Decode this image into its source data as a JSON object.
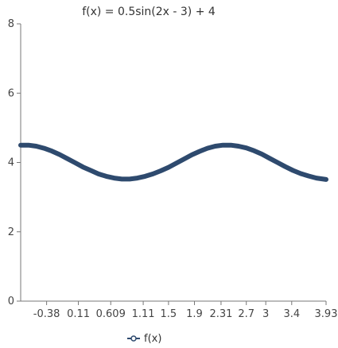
{
  "chart_data": {
    "type": "line",
    "title": "f(x) = 0.5sin(2x - 3) + 4",
    "xlabel": "",
    "ylabel": "",
    "xlim": [
      -0.78,
      3.93
    ],
    "ylim": [
      0,
      8
    ],
    "x_ticks": [
      -0.38,
      0.11,
      0.609,
      1.11,
      1.5,
      1.9,
      2.31,
      2.7,
      3,
      3.4,
      3.93
    ],
    "x_tick_labels": [
      "-0.38",
      "0.11",
      "0.609",
      "1.11",
      "1.5",
      "1.9",
      "2.31",
      "2.7",
      "3",
      "3.4",
      "3.93"
    ],
    "y_ticks": [
      0,
      2,
      4,
      6,
      8
    ],
    "y_tick_labels": [
      "0",
      "2",
      "4",
      "6",
      "8"
    ],
    "grid": false,
    "legend_position": "bottom-center",
    "series": [
      {
        "name": "f(x)",
        "color": "#2e4a6e",
        "x": [
          -0.78,
          -0.66,
          -0.54,
          -0.42,
          -0.3,
          -0.18,
          -0.06,
          0.06,
          0.18,
          0.3,
          0.42,
          0.54,
          0.66,
          0.78,
          0.9,
          1.02,
          1.14,
          1.26,
          1.38,
          1.5,
          1.62,
          1.74,
          1.86,
          1.98,
          2.1,
          2.22,
          2.34,
          2.46,
          2.58,
          2.7,
          2.82,
          2.94,
          3.06,
          3.18,
          3.3,
          3.42,
          3.54,
          3.66,
          3.78,
          3.93
        ],
        "y": [
          4.5,
          4.5,
          4.47,
          4.41,
          4.33,
          4.23,
          4.11,
          3.99,
          3.87,
          3.77,
          3.67,
          3.6,
          3.55,
          3.52,
          3.52,
          3.55,
          3.6,
          3.67,
          3.76,
          3.86,
          3.98,
          4.1,
          4.22,
          4.32,
          4.41,
          4.47,
          4.5,
          4.5,
          4.47,
          4.42,
          4.34,
          4.24,
          4.12,
          4.0,
          3.88,
          3.77,
          3.68,
          3.61,
          3.55,
          3.51
        ]
      }
    ]
  }
}
